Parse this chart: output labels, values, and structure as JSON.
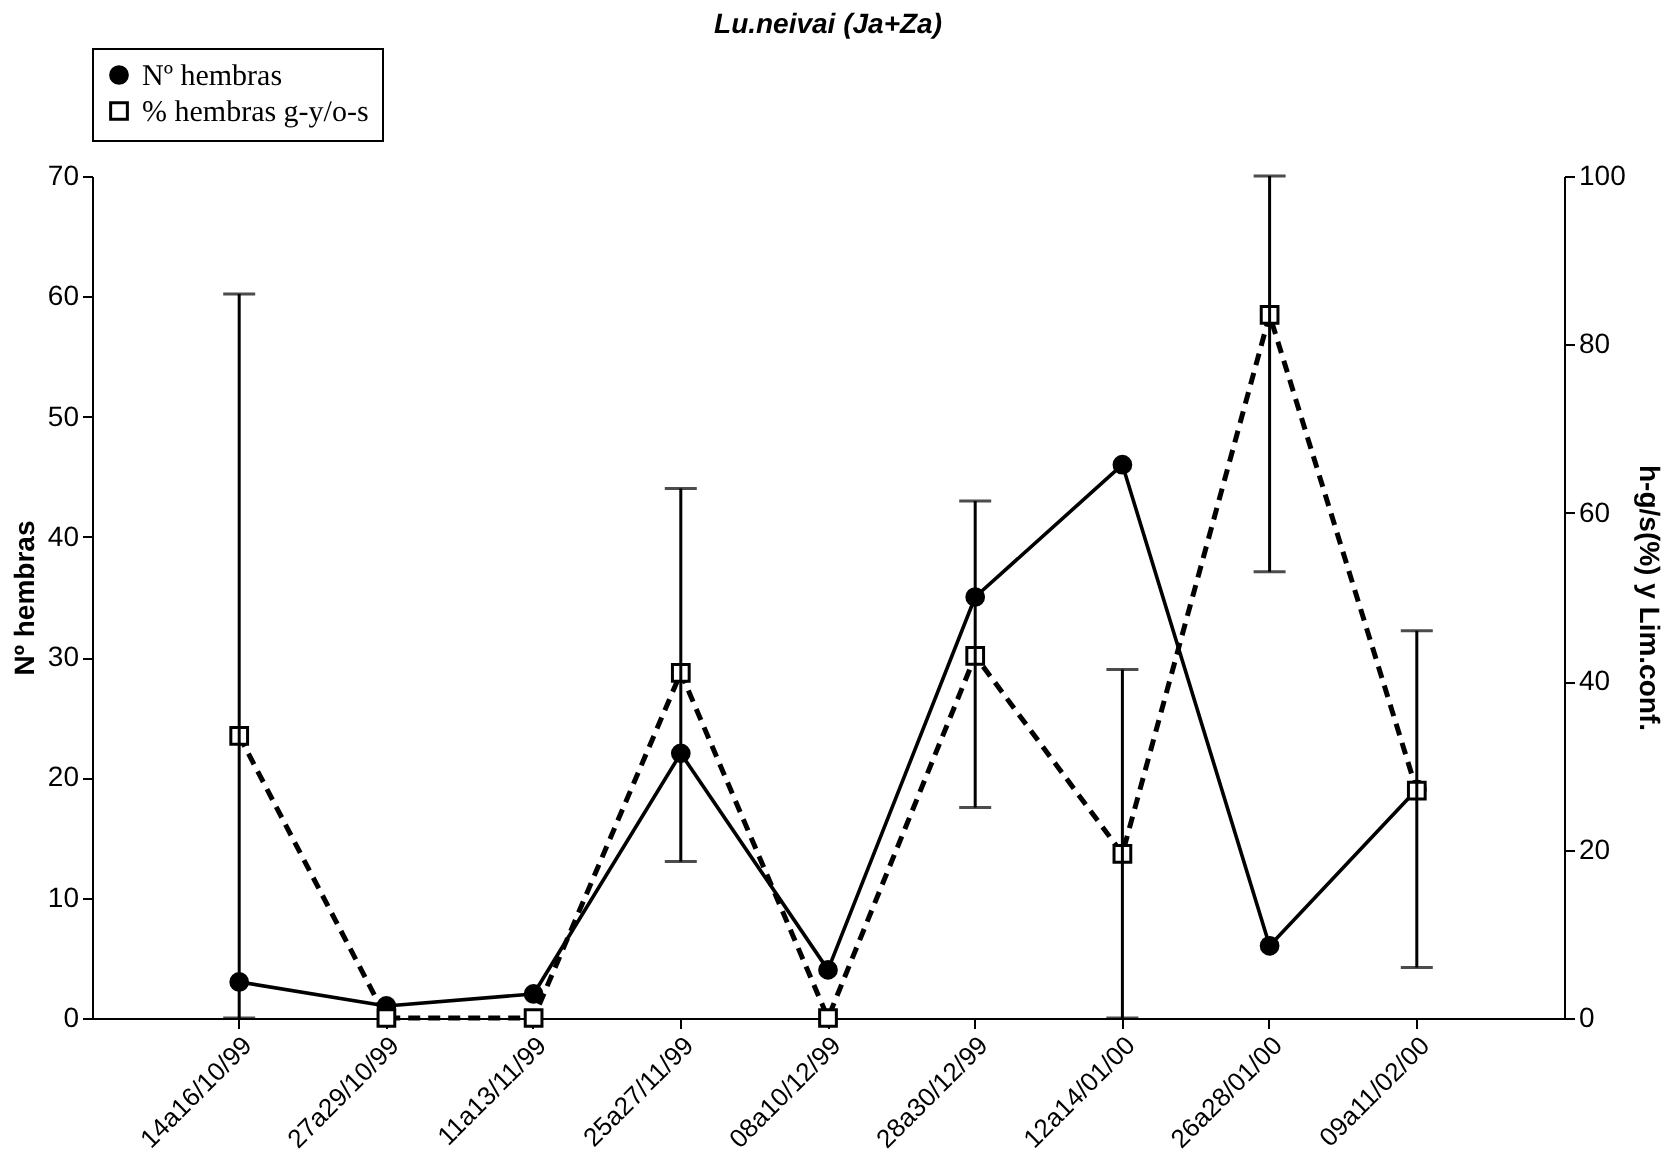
{
  "chart_data": {
    "type": "line",
    "title": "Lu.neivai  (Ja+Za)",
    "ylabel": "Nº hembras",
    "y2label": "h-g/s(%) y Lim.conf.",
    "categories": [
      "14a16/10/99",
      "27a29/10/99",
      "11a13/11/99",
      "25a27/11/99",
      "08a10/12/99",
      "28a30/12/99",
      "12a14/01/00",
      "26a28/01/00",
      "09a11/02/00"
    ],
    "series": [
      {
        "name": "Nº hembras",
        "color": "#000000",
        "marker": "circle",
        "line_style": "solid",
        "values": [
          3,
          1,
          2,
          22,
          4,
          35,
          46,
          6,
          19
        ]
      },
      {
        "name": "% hembras g-y/o-s",
        "color": "#000000",
        "marker": "square",
        "line_style": "dashed",
        "axis": "y2",
        "values": [
          33.5,
          0,
          0,
          41,
          0,
          43,
          19.5,
          83.5,
          27
        ],
        "errors": [
          [
            0,
            86
          ],
          null,
          null,
          [
            18.6,
            62.9
          ],
          null,
          [
            25,
            61.4
          ],
          [
            0,
            41.4
          ],
          [
            53,
            100
          ],
          [
            6,
            46
          ]
        ]
      }
    ],
    "ylim": [
      0,
      70
    ],
    "yticks": [
      0,
      10,
      20,
      30,
      40,
      50,
      60,
      70
    ],
    "y2lim": [
      0,
      100
    ],
    "y2ticks": [
      0,
      20,
      40,
      60,
      80,
      100
    ],
    "legend": "top",
    "grid": false
  }
}
